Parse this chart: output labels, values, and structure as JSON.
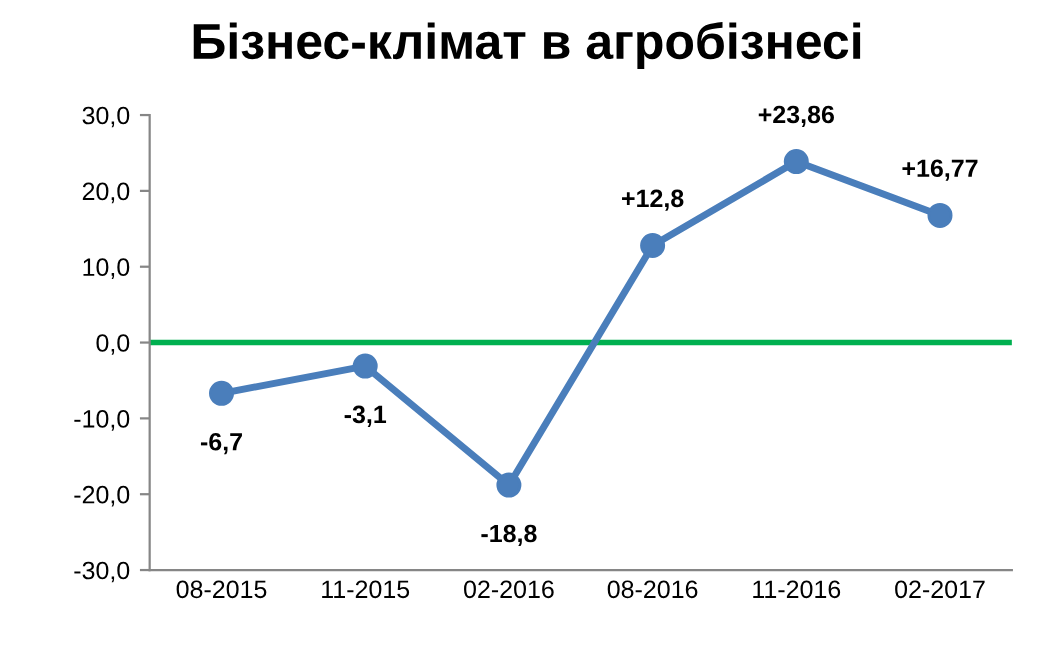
{
  "chart_data": {
    "type": "line",
    "title": "Бізнес-клімат в агробізнесі",
    "categories": [
      "08-2015",
      "11-2015",
      "02-2016",
      "08-2016",
      "11-2016",
      "02-2017"
    ],
    "series": [
      {
        "color": "#4a7ebb",
        "values": [
          -6.7,
          -3.1,
          -18.8,
          12.8,
          23.86,
          16.77
        ],
        "value_labels": [
          "-6,7",
          "-3,1",
          "-18,8",
          "+12,8",
          "+23,86",
          "+16,77"
        ]
      }
    ],
    "ylim": [
      -30,
      30
    ],
    "yticks": [
      {
        "value": -30,
        "label": "-30,0"
      },
      {
        "value": -20,
        "label": "-20,0"
      },
      {
        "value": -10,
        "label": "-10,0"
      },
      {
        "value": 0,
        "label": "0,0"
      },
      {
        "value": 10,
        "label": "10,0"
      },
      {
        "value": 20,
        "label": "20,0"
      },
      {
        "value": 30,
        "label": "30,0"
      }
    ],
    "ref_lines": [
      {
        "axis": "y",
        "value": 0,
        "color": "#00b050"
      }
    ],
    "marker": "circle",
    "line_style": "solid",
    "grid": false,
    "legend": false
  }
}
